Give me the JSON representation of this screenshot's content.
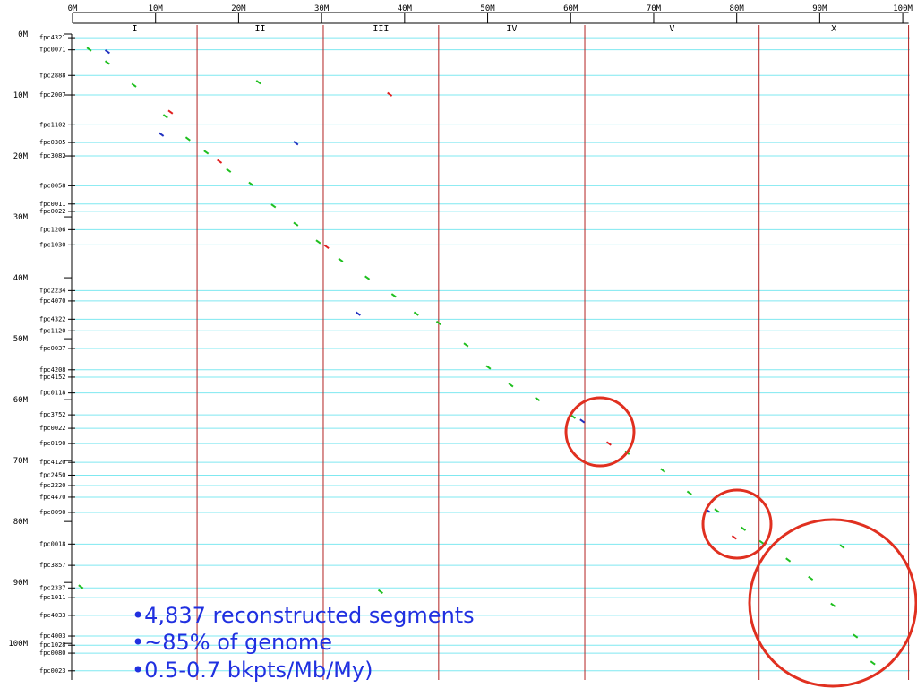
{
  "chart_data": {
    "type": "scatter",
    "xlim": [
      0,
      101.5
    ],
    "ylim": [
      0,
      106
    ],
    "y_inverted": true,
    "xticks": [
      {
        "value": 0,
        "label": "0M"
      },
      {
        "value": 10,
        "label": "10M"
      },
      {
        "value": 20,
        "label": "20M"
      },
      {
        "value": 30,
        "label": "30M"
      },
      {
        "value": 40,
        "label": "40M"
      },
      {
        "value": 50,
        "label": "50M"
      },
      {
        "value": 60,
        "label": "60M"
      },
      {
        "value": 70,
        "label": "70M"
      },
      {
        "value": 80,
        "label": "80M"
      },
      {
        "value": 90,
        "label": "90M"
      },
      {
        "value": 100,
        "label": "100M"
      }
    ],
    "yticks": [
      {
        "value": 0,
        "label": "0M"
      },
      {
        "value": 10,
        "label": "10M"
      },
      {
        "value": 20,
        "label": "20M"
      },
      {
        "value": 30,
        "label": "30M"
      },
      {
        "value": 40,
        "label": "40M"
      },
      {
        "value": 50,
        "label": "50M"
      },
      {
        "value": 60,
        "label": "60M"
      },
      {
        "value": 70,
        "label": "70M"
      },
      {
        "value": 80,
        "label": "80M"
      },
      {
        "value": 90,
        "label": "90M"
      },
      {
        "value": 100,
        "label": "100M"
      }
    ],
    "chromosomes": {
      "labels": [
        "I",
        "II",
        "III",
        "IV",
        "V",
        "X"
      ],
      "bounds": [
        0,
        15.0,
        30.2,
        44.1,
        61.7,
        82.7,
        100.7
      ],
      "color": "#b22222"
    },
    "contigs": {
      "color": "#7fe8f0",
      "labels": [
        "fpc4321",
        "fpc0071",
        "fpc2888",
        "fpc2007",
        "fpc1102",
        "fpc0305",
        "fpc3082",
        "fpc0058",
        "fpc0011",
        "fpc0022",
        "fpc1206",
        "fpc1030",
        "fpc2234",
        "fpc4070",
        "fpc4322",
        "fpc1120",
        "fpc0037",
        "fpc4208",
        "fpc4152",
        "fpc0118",
        "fpc3752",
        "fpc0022",
        "fpc0190",
        "fpc4120",
        "fpc2450",
        "fpc2220",
        "fpc4470",
        "fpc0090",
        "fpc0018",
        "fpc3857",
        "fpc2337",
        "fpc1011",
        "fpc4033",
        "fpc4003",
        "fpc1028",
        "fpc0080",
        "fpc0023"
      ],
      "positions": [
        0.6,
        2.6,
        6.8,
        10.0,
        14.9,
        17.8,
        20.0,
        24.9,
        27.9,
        29.1,
        32.1,
        34.6,
        42.1,
        43.8,
        46.8,
        48.7,
        51.6,
        55.1,
        56.3,
        58.9,
        62.5,
        64.7,
        67.2,
        70.3,
        72.4,
        74.1,
        76.0,
        78.5,
        83.7,
        87.2,
        90.9,
        92.5,
        95.4,
        98.8,
        100.3,
        101.6,
        104.5
      ]
    },
    "series": [
      {
        "color": "#1fbf1f",
        "x": [
          2.0,
          4.2,
          7.4,
          11.2,
          13.9,
          16.1,
          18.8,
          21.5,
          24.2,
          26.9,
          29.6,
          32.3,
          35.5,
          38.7,
          41.4,
          44.1,
          47.4,
          50.1,
          52.8,
          56.0,
          60.3,
          66.8,
          71.1,
          74.3,
          77.6,
          80.8,
          83.0,
          86.2,
          88.9,
          91.6,
          94.3,
          96.4,
          22.4,
          92.7,
          37.1,
          1.0
        ],
        "values": [
          2.5,
          4.7,
          8.4,
          13.5,
          17.2,
          19.4,
          22.4,
          24.6,
          28.2,
          31.2,
          34.1,
          37.1,
          40.0,
          42.9,
          45.9,
          47.4,
          51.0,
          54.7,
          57.6,
          59.9,
          62.8,
          68.7,
          71.6,
          75.3,
          78.2,
          81.2,
          83.4,
          86.3,
          89.3,
          93.7,
          98.8,
          103.2,
          7.9,
          84.1,
          91.5,
          90.7
        ]
      },
      {
        "color": "#e02020",
        "x": [
          11.8,
          17.7,
          30.6,
          64.6,
          79.7,
          38.2
        ],
        "values": [
          12.8,
          20.9,
          34.9,
          67.2,
          82.6,
          9.9
        ]
      },
      {
        "color": "#2030c0",
        "x": [
          4.2,
          61.4,
          76.5,
          34.4,
          10.7,
          26.9
        ],
        "values": [
          2.9,
          63.5,
          78.2,
          45.9,
          16.5,
          17.9
        ]
      }
    ],
    "annotations": [
      "•4,837 reconstructed segments",
      "•~85% of genome",
      "•0.5-0.7 bkpts/Mb/My)"
    ]
  }
}
